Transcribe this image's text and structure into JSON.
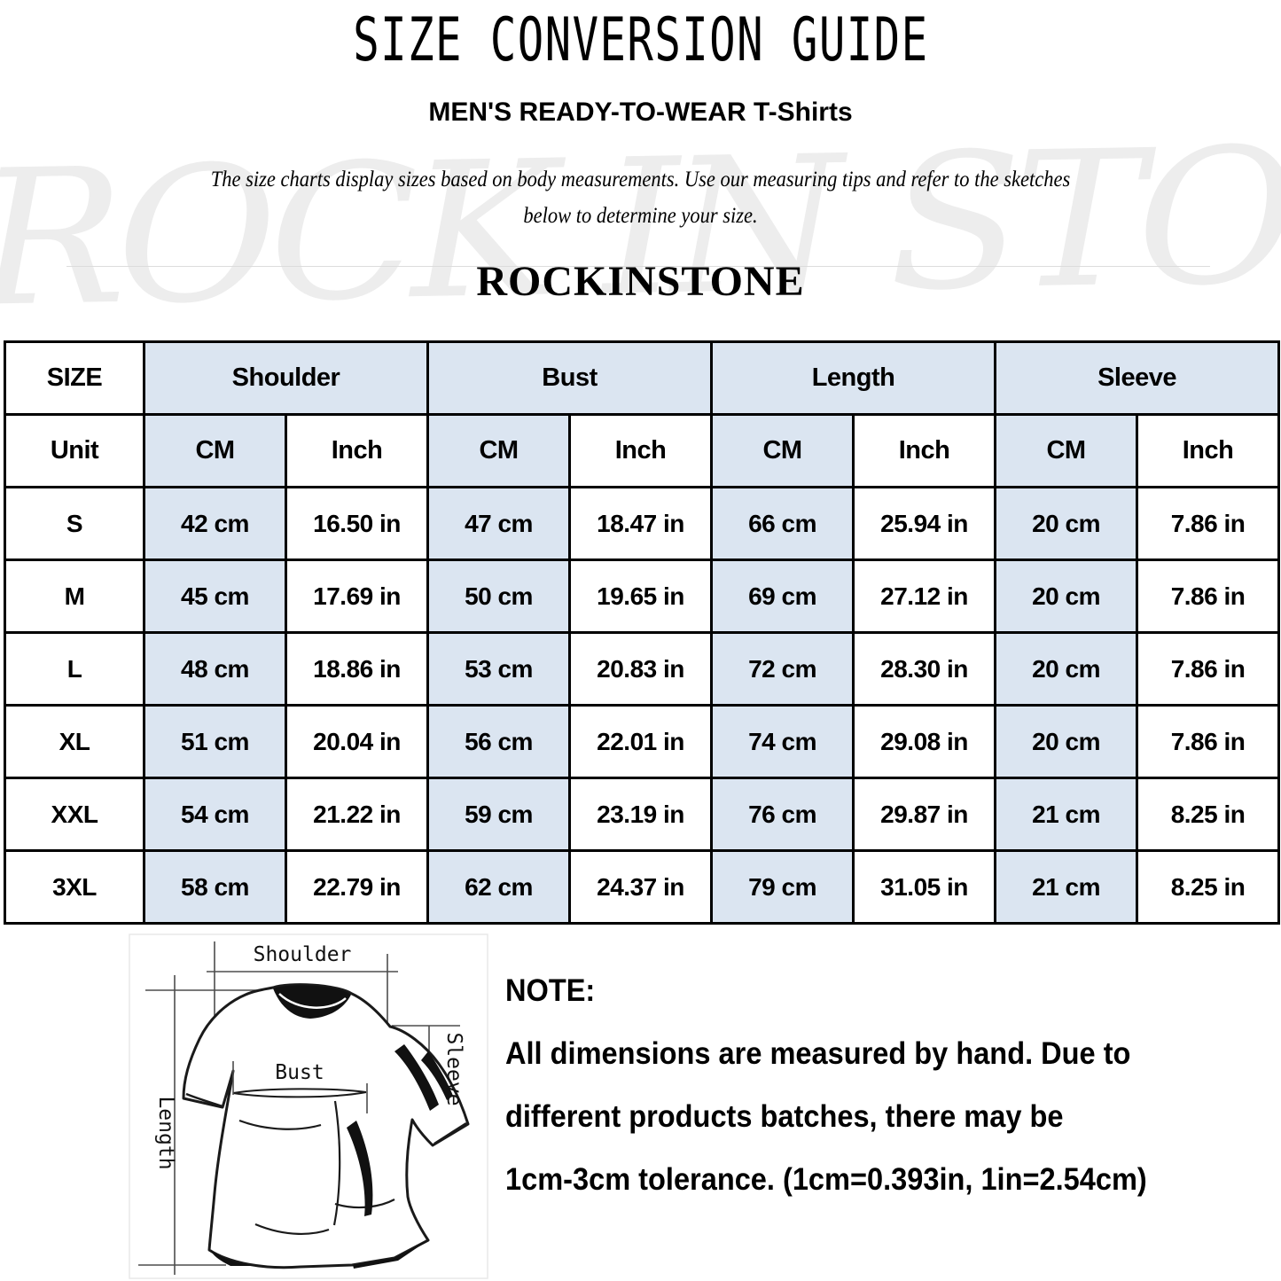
{
  "header": {
    "title": "SIZE CONVERSION GUIDE",
    "subtitle": "MEN'S READY-TO-WEAR T-Shirts",
    "description": [
      "The size charts display sizes based on body measurements. Use our measuring tips and refer to the sketches",
      "below to determine your size."
    ],
    "brand": "ROCKINSTONE",
    "watermark": "ROCK IN STONE"
  },
  "table": {
    "size_header": "SIZE",
    "unit_header": "Unit",
    "unit_cm": "CM",
    "unit_inch": "Inch",
    "col_groups": [
      "Shoulder",
      "Bust",
      "Length",
      "Sleeve"
    ],
    "rows": [
      {
        "size": "S",
        "cells": [
          "42 cm",
          "16.50 in",
          "47 cm",
          "18.47 in",
          "66 cm",
          "25.94 in",
          "20 cm",
          "7.86 in"
        ]
      },
      {
        "size": "M",
        "cells": [
          "45 cm",
          "17.69 in",
          "50 cm",
          "19.65 in",
          "69 cm",
          "27.12 in",
          "20 cm",
          "7.86 in"
        ]
      },
      {
        "size": "L",
        "cells": [
          "48 cm",
          "18.86 in",
          "53 cm",
          "20.83 in",
          "72 cm",
          "28.30 in",
          "20 cm",
          "7.86 in"
        ]
      },
      {
        "size": "XL",
        "cells": [
          "51 cm",
          "20.04 in",
          "56 cm",
          "22.01 in",
          "74 cm",
          "29.08 in",
          "20 cm",
          "7.86 in"
        ]
      },
      {
        "size": "XXL",
        "cells": [
          "54 cm",
          "21.22 in",
          "59 cm",
          "23.19 in",
          "76 cm",
          "29.87 in",
          "21 cm",
          "8.25 in"
        ]
      },
      {
        "size": "3XL",
        "cells": [
          "58 cm",
          "22.79 in",
          "62 cm",
          "24.37 in",
          "79 cm",
          "31.05 in",
          "21 cm",
          "8.25 in"
        ]
      }
    ]
  },
  "diagram": {
    "shoulder_label": "Shoulder",
    "bust_label": "Bust",
    "length_label": "Length",
    "sleeve_label": "Sleeve"
  },
  "note": {
    "heading": "NOTE:",
    "lines": [
      "All dimensions are measured by hand. Due to",
      "different products batches, there may be",
      "1cm-3cm tolerance. (1cm=0.393in, 1in=2.54cm)"
    ]
  },
  "colors": {
    "cell_blue": "#dbe5f1",
    "table_border": "#000000",
    "watermark_gray": "#ededed"
  }
}
